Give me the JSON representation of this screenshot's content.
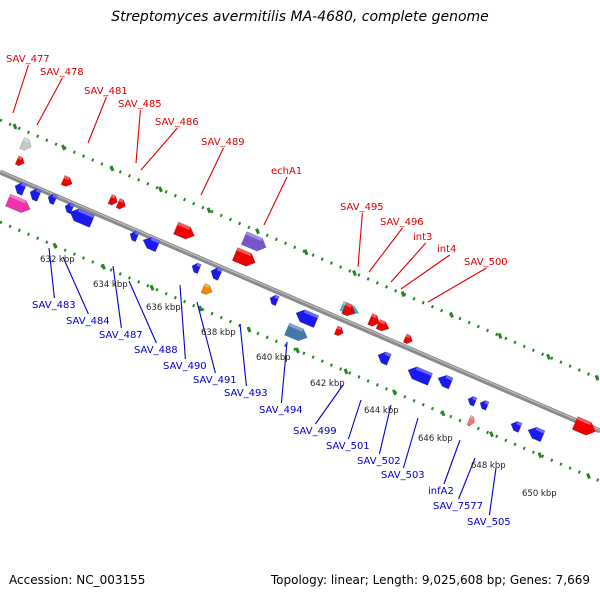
{
  "title": "Streptomyces avermitilis MA-4680, complete genome",
  "footer": {
    "accession": "Accession: NC_003155",
    "summary": "Topology: linear; Length: 9,025,608 bp; Genes: 7,669"
  },
  "colors": {
    "forward_label": "#dd0000",
    "reverse_label": "#0000cc",
    "dotted_guide": "#228822",
    "backbone": "#888888"
  },
  "kbp_ticks": [
    "632 kbp",
    "634 kbp",
    "636 kbp",
    "638 kbp",
    "640 kbp",
    "642 kbp",
    "644 kbp",
    "646 kbp",
    "648 kbp",
    "650 kbp"
  ],
  "forward_labels": [
    "SAV_477",
    "SAV_478",
    "SAV_481",
    "SAV_485",
    "SAV_486",
    "SAV_489",
    "echA1",
    "SAV_495",
    "SAV_496",
    "int3",
    "int4",
    "SAV_500"
  ],
  "reverse_labels": [
    "SAV_483",
    "SAV_484",
    "SAV_487",
    "SAV_488",
    "SAV_490",
    "SAV_491",
    "SAV_493",
    "SAV_494",
    "SAV_499",
    "SAV_501",
    "SAV_502",
    "SAV_503",
    "infA2",
    "SAV_7577",
    "SAV_505"
  ]
}
